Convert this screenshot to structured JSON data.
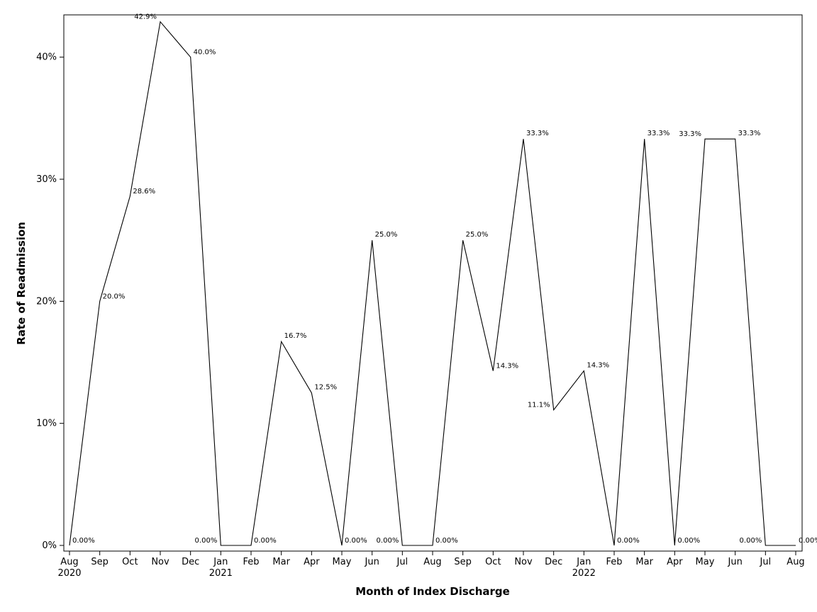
{
  "chart_data": {
    "type": "line",
    "xlabel": "Month of Index Discharge",
    "ylabel": "Rate of Readmission",
    "grid": false,
    "legend": "none",
    "ylim": [
      0,
      0.43
    ],
    "y_ticks": [
      {
        "value": 0,
        "label": "0%"
      },
      {
        "value": 0.1,
        "label": "10%"
      },
      {
        "value": 0.2,
        "label": "20%"
      },
      {
        "value": 0.3,
        "label": "30%"
      },
      {
        "value": 0.4,
        "label": "40%"
      }
    ],
    "line_color": "#000000",
    "points": [
      {
        "month": "Aug",
        "year": "2020",
        "value": 0.0,
        "label": "0.00%"
      },
      {
        "month": "Sep",
        "year": "",
        "value": 0.2,
        "label": "20.0%"
      },
      {
        "month": "Oct",
        "year": "",
        "value": 0.286,
        "label": "28.6%"
      },
      {
        "month": "Nov",
        "year": "",
        "value": 0.429,
        "label": "42.9%"
      },
      {
        "month": "Dec",
        "year": "",
        "value": 0.4,
        "label": "40.0%"
      },
      {
        "month": "Jan",
        "year": "2021",
        "value": 0.0,
        "label": "0.00%"
      },
      {
        "month": "Feb",
        "year": "",
        "value": 0.0,
        "label": "0.00%"
      },
      {
        "month": "Mar",
        "year": "",
        "value": 0.167,
        "label": "16.7%"
      },
      {
        "month": "Apr",
        "year": "",
        "value": 0.125,
        "label": "12.5%"
      },
      {
        "month": "May",
        "year": "",
        "value": 0.0,
        "label": "0.00%"
      },
      {
        "month": "Jun",
        "year": "",
        "value": 0.25,
        "label": "25.0%"
      },
      {
        "month": "Jul",
        "year": "",
        "value": 0.0,
        "label": "0.00%"
      },
      {
        "month": "Aug",
        "year": "",
        "value": 0.0,
        "label": "0.00%"
      },
      {
        "month": "Sep",
        "year": "",
        "value": 0.25,
        "label": "25.0%"
      },
      {
        "month": "Oct",
        "year": "",
        "value": 0.143,
        "label": "14.3%"
      },
      {
        "month": "Nov",
        "year": "",
        "value": 0.333,
        "label": "33.3%"
      },
      {
        "month": "Dec",
        "year": "",
        "value": 0.111,
        "label": "11.1%"
      },
      {
        "month": "Jan",
        "year": "2022",
        "value": 0.143,
        "label": "14.3%"
      },
      {
        "month": "Feb",
        "year": "",
        "value": 0.0,
        "label": "0.00%"
      },
      {
        "month": "Mar",
        "year": "",
        "value": 0.333,
        "label": "33.3%"
      },
      {
        "month": "Apr",
        "year": "",
        "value": 0.0,
        "label": "0.00%"
      },
      {
        "month": "May",
        "year": "",
        "value": 0.333,
        "label": "33.3%"
      },
      {
        "month": "Jun",
        "year": "",
        "value": 0.333,
        "label": "33.3%"
      },
      {
        "month": "Jul",
        "year": "",
        "value": 0.0,
        "label": "0.00%"
      },
      {
        "month": "Aug",
        "year": "",
        "value": 0.0,
        "label": "0.00%"
      }
    ]
  }
}
